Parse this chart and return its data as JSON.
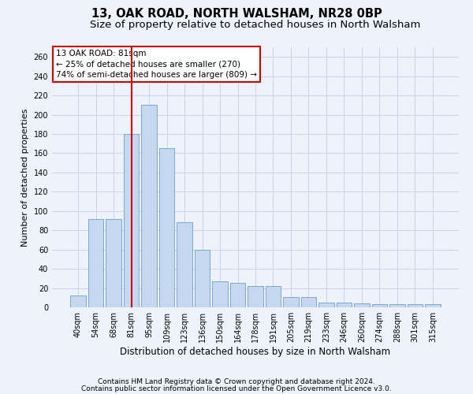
{
  "title1": "13, OAK ROAD, NORTH WALSHAM, NR28 0BP",
  "title2": "Size of property relative to detached houses in North Walsham",
  "xlabel": "Distribution of detached houses by size in North Walsham",
  "ylabel": "Number of detached properties",
  "categories": [
    "40sqm",
    "54sqm",
    "68sqm",
    "81sqm",
    "95sqm",
    "109sqm",
    "123sqm",
    "136sqm",
    "150sqm",
    "164sqm",
    "178sqm",
    "191sqm",
    "205sqm",
    "219sqm",
    "233sqm",
    "246sqm",
    "260sqm",
    "274sqm",
    "288sqm",
    "301sqm",
    "315sqm"
  ],
  "values": [
    12,
    92,
    92,
    180,
    210,
    165,
    88,
    60,
    27,
    25,
    22,
    22,
    11,
    11,
    5,
    5,
    4,
    3,
    3,
    3,
    3
  ],
  "bar_color": "#c5d8f0",
  "bar_edge_color": "#7ba7d0",
  "red_line_index": 3,
  "annotation_line1": "13 OAK ROAD: 81sqm",
  "annotation_line2": "← 25% of detached houses are smaller (270)",
  "annotation_line3": "74% of semi-detached houses are larger (809) →",
  "annotation_box_color": "#ffffff",
  "annotation_box_edge_color": "#cc0000",
  "red_line_color": "#cc0000",
  "ylim": [
    0,
    270
  ],
  "yticks": [
    0,
    20,
    40,
    60,
    80,
    100,
    120,
    140,
    160,
    180,
    200,
    220,
    240,
    260
  ],
  "footer1": "Contains HM Land Registry data © Crown copyright and database right 2024.",
  "footer2": "Contains public sector information licensed under the Open Government Licence v3.0.",
  "bg_color": "#eef2fa",
  "grid_color": "#c8d4e8",
  "title1_fontsize": 10.5,
  "title2_fontsize": 9.5,
  "xlabel_fontsize": 8.5,
  "ylabel_fontsize": 8,
  "tick_fontsize": 7,
  "annot_fontsize": 7.5,
  "footer_fontsize": 6.5
}
